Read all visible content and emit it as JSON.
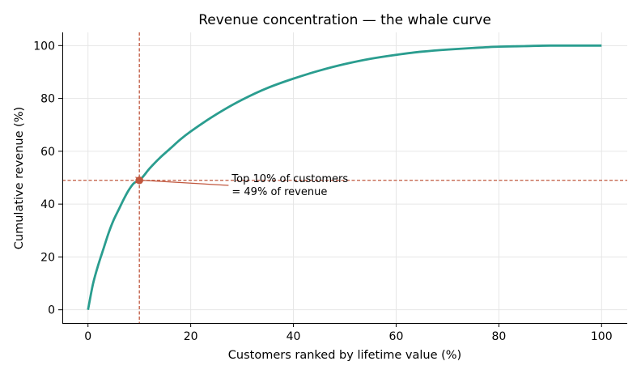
{
  "chart_data": {
    "type": "line",
    "title": "Revenue concentration — the whale curve",
    "xlabel": "Customers ranked by lifetime value (%)",
    "ylabel": "Cumulative revenue (%)",
    "xlim": [
      -5,
      105
    ],
    "ylim": [
      -5,
      105
    ],
    "xticks": [
      0,
      20,
      40,
      60,
      80,
      100
    ],
    "yticks": [
      0,
      20,
      40,
      60,
      80,
      100
    ],
    "grid": true,
    "series": [
      {
        "color": "#2a9d8f",
        "x": [
          0,
          1,
          2,
          3,
          4,
          5,
          6,
          7,
          8,
          9,
          10,
          12,
          14,
          16,
          18,
          20,
          25,
          30,
          35,
          40,
          45,
          50,
          55,
          60,
          65,
          70,
          75,
          80,
          85,
          90,
          95,
          100
        ],
        "y": [
          0,
          10,
          17,
          23,
          29,
          34,
          38,
          42,
          45.5,
          48,
          49,
          53.5,
          57.5,
          61,
          64.5,
          67.5,
          74,
          79.5,
          84,
          87.5,
          90.5,
          93,
          95,
          96.5,
          97.7,
          98.5,
          99.1,
          99.6,
          99.8,
          100,
          100,
          100
        ]
      }
    ],
    "reference_lines": {
      "color": "#c0573e",
      "x": 10,
      "y": 49
    },
    "highlight_point": {
      "x": 10,
      "y": 49,
      "color": "#c0573e"
    },
    "annotation": {
      "lines": [
        "Top 10% of customers",
        "= 49% of revenue"
      ],
      "point": {
        "x": 10,
        "y": 49
      },
      "text_anchor": {
        "x": 28,
        "y": 48
      },
      "color": "#c0573e"
    }
  }
}
